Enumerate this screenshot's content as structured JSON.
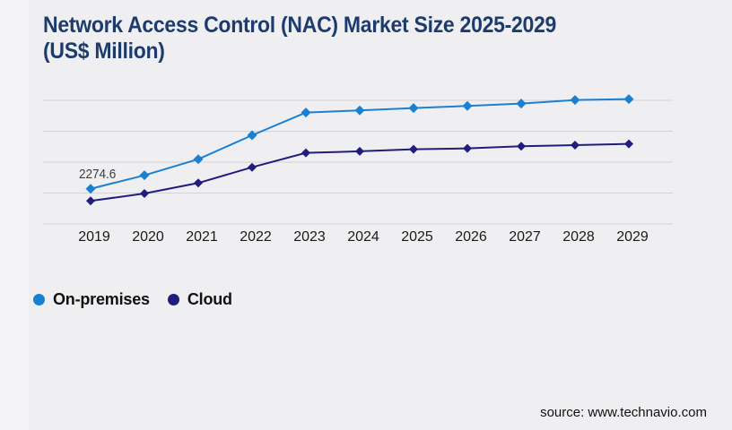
{
  "header": {
    "title_lines": [
      "Network Access Control (NAC) Market Size 2025-2029",
      "(US$ Million)"
    ]
  },
  "colors": {
    "title": "#1d3c6d",
    "gridline": "#d3d3d6",
    "axis_label": "#1a1a1a",
    "data_label": "#3c3c3c",
    "legend_text": "#111111",
    "source_text": "#111111",
    "page_background": "#f3f3f5",
    "panel_background": "#efeff1",
    "on_premises_series": "#1a80d2",
    "cloud_series": "#211d7d"
  },
  "chart_data": {
    "type": "line",
    "title": "Network Access Control (NAC) Market Size 2025-2029 (US$ Million)",
    "categories": [
      "2019",
      "2020",
      "2021",
      "2022",
      "2023",
      "2024",
      "2025",
      "2026",
      "2027",
      "2028",
      "2029"
    ],
    "series": [
      {
        "name": "On-premises",
        "color": "#1a80d2",
        "marker": "diamond",
        "values": [
          2274.6,
          3150,
          4190,
          5740,
          7210,
          7350,
          7500,
          7640,
          7790,
          8020,
          8080
        ]
      },
      {
        "name": "Cloud",
        "color": "#211d7d",
        "marker": "diamond",
        "values": [
          1490,
          1970,
          2650,
          3670,
          4600,
          4700,
          4830,
          4890,
          5030,
          5100,
          5180
        ]
      }
    ],
    "xlabel": "",
    "ylabel": "",
    "ylim": [
      0,
      8000
    ],
    "gridlines_y": [
      0,
      2000,
      4000,
      6000,
      8000
    ],
    "y_axis_labels_visible": false,
    "grid": "horizontal",
    "legend_position": "bottom-left",
    "data_labels": [
      {
        "series": "On-premises",
        "category": "2019",
        "text": "2274.6"
      }
    ]
  },
  "footer": {
    "source_text": "source: www.technavio.com"
  }
}
